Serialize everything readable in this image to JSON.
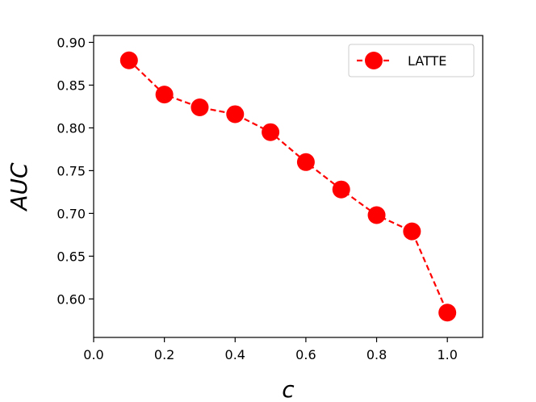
{
  "chart_data": {
    "type": "line",
    "xlabel": "c",
    "ylabel": "AUC",
    "xlim": [
      0.0,
      1.1
    ],
    "ylim": [
      0.555,
      0.908
    ],
    "xticks": [
      "0.0",
      "0.2",
      "0.4",
      "0.6",
      "0.8",
      "1.0"
    ],
    "yticks": [
      "0.60",
      "0.65",
      "0.70",
      "0.75",
      "0.80",
      "0.85",
      "0.90"
    ],
    "grid": false,
    "legend_position": "top-right",
    "series": [
      {
        "name": "LATTE",
        "color": "#ff0000",
        "line_style": "dashed",
        "marker": "circle",
        "x": [
          0.1,
          0.2,
          0.3,
          0.4,
          0.5,
          0.6,
          0.7,
          0.8,
          0.9,
          1.0
        ],
        "y": [
          0.879,
          0.839,
          0.824,
          0.816,
          0.795,
          0.76,
          0.728,
          0.698,
          0.679,
          0.584
        ]
      }
    ]
  }
}
